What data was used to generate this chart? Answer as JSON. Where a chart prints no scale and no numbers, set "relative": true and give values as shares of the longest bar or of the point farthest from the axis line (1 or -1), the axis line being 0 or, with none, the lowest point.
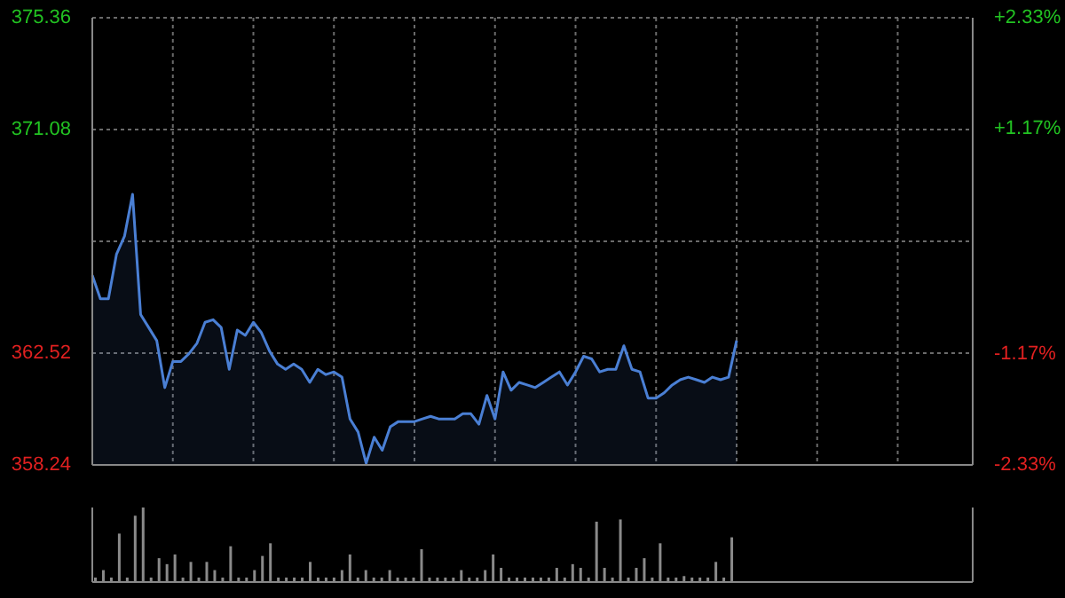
{
  "chart_data": [
    {
      "type": "area",
      "categories": [
        null,
        null,
        null,
        null,
        null,
        null,
        null,
        null,
        null,
        null,
        null,
        null,
        null,
        null,
        null,
        null,
        null,
        null,
        null,
        null,
        null,
        null,
        null,
        null,
        null,
        null,
        null,
        null,
        null,
        null,
        null,
        null,
        null,
        null,
        null,
        null,
        null,
        null,
        null,
        null,
        null,
        null,
        null,
        null,
        null,
        null,
        null,
        null,
        null,
        null,
        null,
        null,
        null,
        null,
        null,
        null,
        null,
        null,
        null,
        null,
        null,
        null,
        null,
        null,
        null,
        null,
        null,
        null,
        null,
        null,
        null,
        null,
        null,
        null,
        null,
        null,
        null,
        null,
        null,
        null,
        null
      ],
      "series": [
        {
          "color": "#4a7fd4",
          "values": [
            365.5,
            364.6,
            364.6,
            366.3,
            367.0,
            368.6,
            364.0,
            363.5,
            363.0,
            361.2,
            362.2,
            362.2,
            362.5,
            362.9,
            363.7,
            363.8,
            363.5,
            361.9,
            363.4,
            363.2,
            363.7,
            363.3,
            362.6,
            362.1,
            361.9,
            362.1,
            361.9,
            361.4,
            361.9,
            361.7,
            361.8,
            361.6,
            360.0,
            359.5,
            358.3,
            359.3,
            358.8,
            359.7,
            359.9,
            359.9,
            359.9,
            360.0,
            360.1,
            360.0,
            360.0,
            360.0,
            360.2,
            360.2,
            359.8,
            360.9,
            360.0,
            361.8,
            361.1,
            361.4,
            361.3,
            361.2,
            361.4,
            361.6,
            361.8,
            361.3,
            361.8,
            362.4,
            362.3,
            361.8,
            361.9,
            361.9,
            362.8,
            361.9,
            361.8,
            360.8,
            360.8,
            361.0,
            361.3,
            361.5,
            361.6,
            361.5,
            361.4,
            361.6,
            361.5,
            361.6,
            363.0
          ]
        }
      ],
      "ylim": [
        358.24,
        375.36
      ],
      "yticks": [
        358.24,
        362.52,
        {
          "value": 366.8,
          "label": null
        },
        371.08,
        375.36
      ],
      "y2lim": [
        -2.33,
        2.33
      ],
      "y2ticks": [
        {
          "value": -2.33,
          "label": "-2.33%"
        },
        {
          "value": -1.17,
          "label": "-1.17%"
        },
        {
          "value": 0,
          "label": null
        },
        {
          "value": 1.17,
          "label": "+1.17%"
        },
        {
          "value": 2.33,
          "label": "+2.33%"
        }
      ],
      "grid": true,
      "tick_labels": "y"
    },
    {
      "type": "bar",
      "relative": true,
      "tick_labels": false,
      "categories": [
        null,
        null,
        null,
        null,
        null,
        null,
        null,
        null,
        null,
        null,
        null,
        null,
        null,
        null,
        null,
        null,
        null,
        null,
        null,
        null,
        null,
        null,
        null,
        null,
        null,
        null,
        null,
        null,
        null,
        null,
        null,
        null,
        null,
        null,
        null,
        null,
        null,
        null,
        null,
        null,
        null,
        null,
        null,
        null,
        null,
        null,
        null,
        null,
        null,
        null,
        null,
        null,
        null,
        null,
        null,
        null,
        null,
        null,
        null,
        null,
        null,
        null,
        null,
        null,
        null,
        null,
        null,
        null,
        null,
        null,
        null,
        null,
        null,
        null,
        null,
        null,
        null,
        null,
        null,
        null,
        null
      ],
      "series": [
        {
          "color": "#8a8a8a",
          "values": [
            0.06,
            0.16,
            0.06,
            0.65,
            0.06,
            0.89,
            1,
            0.06,
            0.32,
            0.24,
            0.37,
            0.06,
            0.27,
            0.06,
            0.27,
            0.16,
            0.06,
            0.48,
            0.06,
            0.06,
            0.16,
            0.35,
            0.52,
            0.06,
            0.06,
            0.06,
            0.06,
            0.27,
            0.06,
            0.06,
            0.06,
            0.16,
            0.37,
            0.06,
            0.16,
            0.06,
            0.06,
            0.16,
            0.06,
            0.06,
            0.06,
            0.44,
            0.06,
            0.06,
            0.06,
            0.06,
            0.16,
            0.06,
            0.06,
            0.16,
            0.37,
            0.19,
            0.06,
            0.06,
            0.06,
            0.06,
            0.06,
            0.06,
            0.19,
            0.06,
            0.24,
            0.19,
            0.06,
            0.81,
            0.19,
            0.06,
            0.84,
            0.06,
            0.19,
            0.32,
            0.06,
            0.52,
            0.06,
            0.06,
            0.08,
            0.06,
            0.06,
            0.06,
            0.27,
            0.06,
            0.6
          ]
        }
      ]
    }
  ]
}
